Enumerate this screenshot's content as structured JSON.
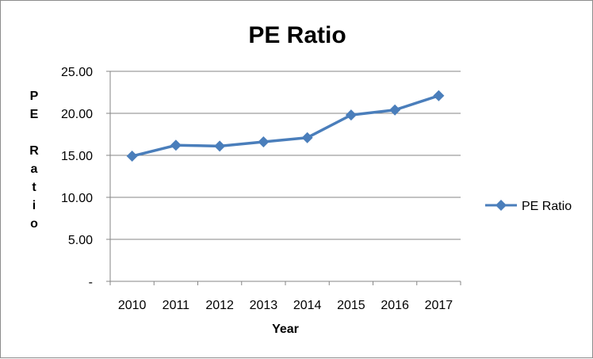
{
  "chart_data": {
    "type": "line",
    "title": "PE Ratio",
    "xlabel": "Year",
    "ylabel": "PE Ratio",
    "categories": [
      "2010",
      "2011",
      "2012",
      "2013",
      "2014",
      "2015",
      "2016",
      "2017"
    ],
    "series": [
      {
        "name": "PE Ratio",
        "values": [
          14.9,
          16.2,
          16.1,
          16.6,
          17.1,
          19.8,
          20.4,
          22.1
        ],
        "color": "#4a7ebb"
      }
    ],
    "ylim": [
      0,
      25
    ],
    "yticks": [
      "-",
      "5.00",
      "10.00",
      "15.00",
      "20.00",
      "25.00"
    ],
    "grid": "horizontal",
    "legend": "right"
  }
}
